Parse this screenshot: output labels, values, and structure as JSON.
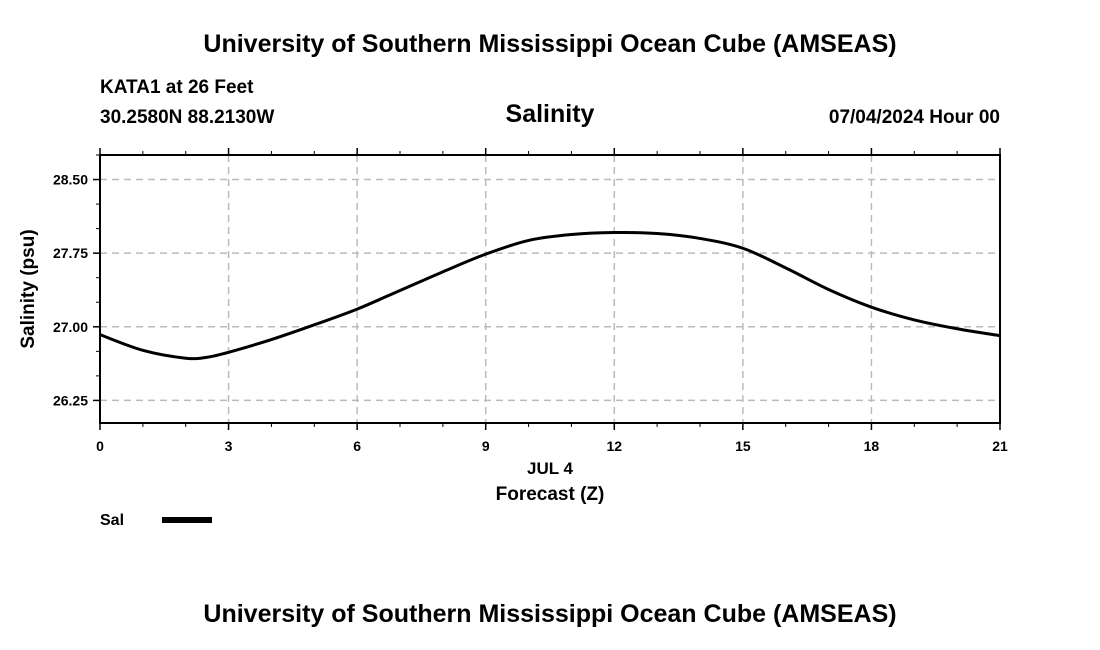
{
  "header": {
    "top_title": "University of Southern Mississippi Ocean Cube (AMSEAS)",
    "station": "KATA1 at 26 Feet",
    "coords": "30.2580N  88.2130W",
    "datetime": "07/04/2024 Hour 00",
    "bottom_title": "University of Southern Mississippi Ocean Cube (AMSEAS)"
  },
  "chart_data": {
    "type": "line",
    "title": "Salinity",
    "xlabel": "Forecast (Z)",
    "xsublabel": "JUL 4",
    "ylabel": "Salinity (psu)",
    "xlim": [
      0,
      21
    ],
    "ylim": [
      26.02,
      28.75
    ],
    "xticks": [
      0,
      3,
      6,
      9,
      12,
      15,
      18,
      21
    ],
    "xtick_labels": [
      "0",
      "3",
      "6",
      "9",
      "12",
      "15",
      "18",
      "21"
    ],
    "yticks": [
      26.25,
      27.0,
      27.75,
      28.5
    ],
    "ytick_labels": [
      "26.25",
      "27.00",
      "27.75",
      "28.50"
    ],
    "grid": true,
    "series": [
      {
        "name": "Sal",
        "color": "#000000",
        "x": [
          0,
          1,
          2,
          2.5,
          3,
          4,
          5,
          6,
          7,
          8,
          9,
          10,
          11,
          12,
          13,
          14,
          15,
          16,
          17,
          18,
          19,
          20,
          21
        ],
        "values": [
          26.92,
          26.76,
          26.68,
          26.69,
          26.74,
          26.87,
          27.02,
          27.18,
          27.37,
          27.56,
          27.74,
          27.88,
          27.94,
          27.96,
          27.95,
          27.9,
          27.8,
          27.6,
          27.38,
          27.2,
          27.07,
          26.98,
          26.91
        ]
      }
    ],
    "legend": {
      "position": "bottom-left",
      "label": "Sal"
    }
  }
}
